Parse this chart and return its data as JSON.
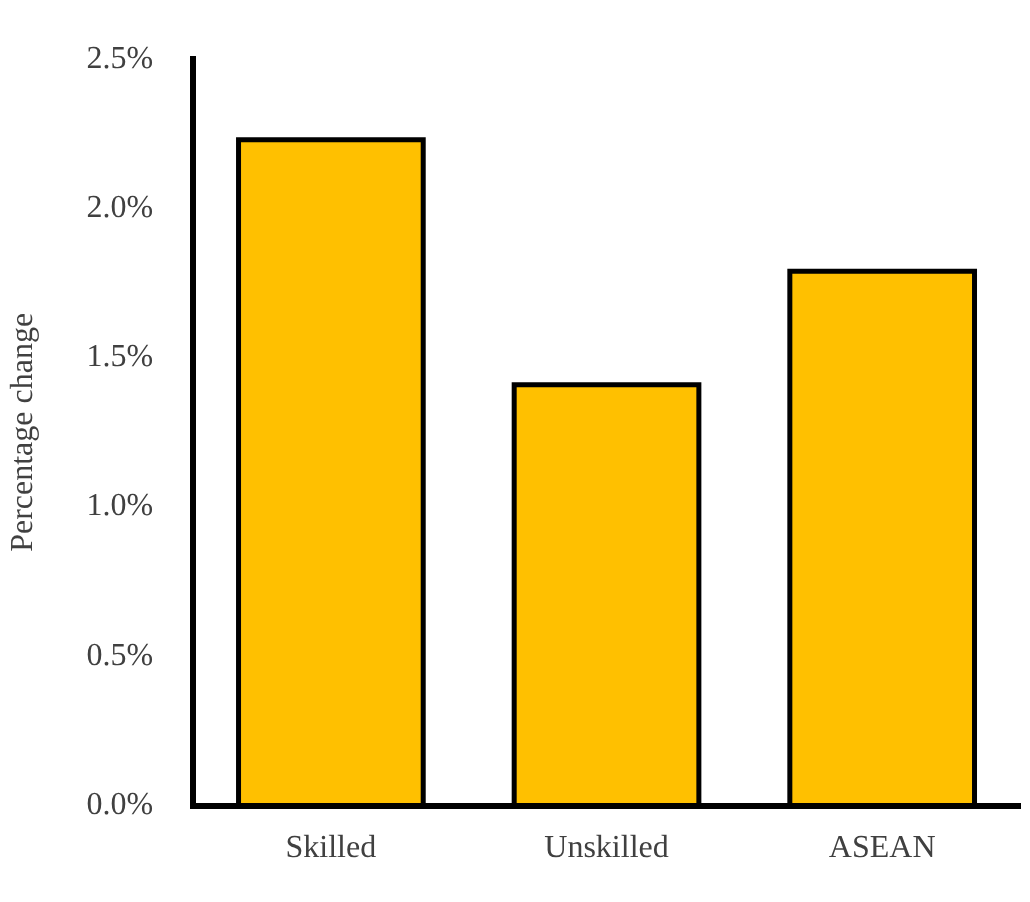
{
  "chart_data": {
    "type": "bar",
    "ylabel": "Percentage change",
    "categories": [
      "Skilled",
      "Unskilled",
      "ASEAN"
    ],
    "values": [
      2.23,
      1.41,
      1.79
    ],
    "color": "#ffc000",
    "ylim": [
      0,
      2.5
    ],
    "yticks": [
      {
        "value": 0,
        "label": "0.0%"
      },
      {
        "value": 0.5,
        "label": "0.5%"
      },
      {
        "value": 1,
        "label": "1.0%"
      },
      {
        "value": 1.5,
        "label": "1.5%"
      },
      {
        "value": 2,
        "label": "2.0%"
      },
      {
        "value": 2.5,
        "label": "2.5%"
      }
    ],
    "grid": false,
    "legend": false
  }
}
